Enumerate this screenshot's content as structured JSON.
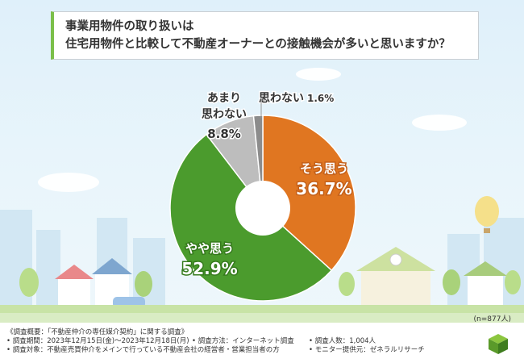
{
  "title": {
    "line1": "事業用物件の取り扱いは",
    "line2": "住宅用物件と比較して不動産オーナーとの接触機会が多いと思いますか？"
  },
  "sample_size": "(n=877人)",
  "chart_data": {
    "type": "pie",
    "donut": true,
    "categories": [
      "そう思う",
      "やや思う",
      "あまり思わない",
      "思わない"
    ],
    "values": [
      36.7,
      52.9,
      8.8,
      1.6
    ],
    "labels": [
      {
        "lines": [
          "そう思う"
        ],
        "value": "36.7%"
      },
      {
        "lines": [
          "やや思う"
        ],
        "value": "52.9%"
      },
      {
        "lines": [
          "あまり",
          "思わない"
        ],
        "value": "8.8%"
      },
      {
        "lines": [
          "思わない"
        ],
        "value": "1.6%"
      }
    ],
    "colors": [
      "#e07621",
      "#4b9b2d",
      "#bdbdbd",
      "#8c8c8c"
    ],
    "start_angle": "top, clockwise"
  },
  "footer": {
    "overview": "《調査概要：「不動産仲介の専任媒介契約」に関する調査》",
    "period": "• 調査期間：2023年12月15日(金)～2023年12月18日(月)",
    "method": "• 調査方法：インターネット調査",
    "count": "• 調査人数：1,004人",
    "target": "• 調査対象：不動産売買仲介をメインで行っている不動産会社の経営者・営業担当者の方",
    "provider": "• モニター提供元：ゼネラルリサーチ"
  },
  "colors": {
    "accent_green": "#7bbf4a",
    "sky": "#e9f5fb"
  }
}
